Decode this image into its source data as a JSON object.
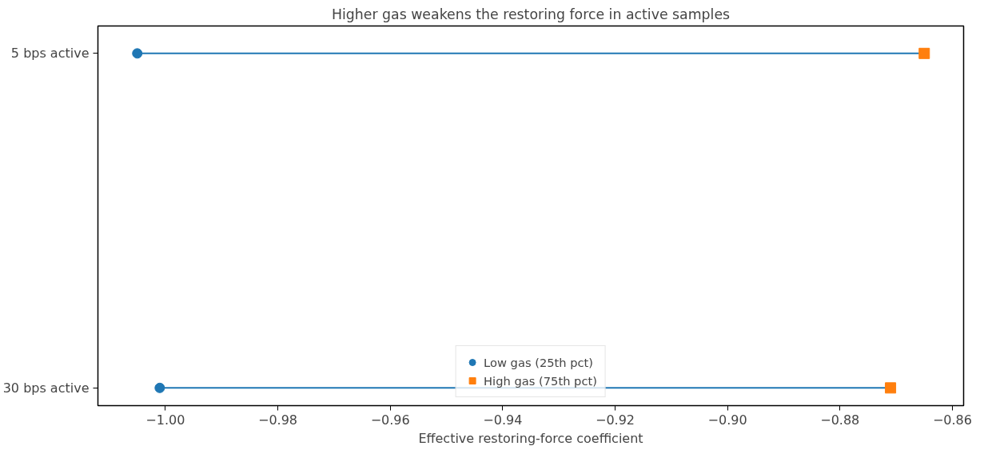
{
  "chart_data": {
    "type": "scatter",
    "title": "Higher gas weakens the restoring force in active samples",
    "xlabel": "Effective restoring-force coefficient",
    "orientation": "horizontal",
    "categories": [
      "5 bps active",
      "30 bps active"
    ],
    "series": [
      {
        "name": "Low gas (25th pct)",
        "color": "#1f77b4",
        "marker": "circle",
        "values": [
          -1.005,
          -1.001
        ]
      },
      {
        "name": "High gas (75th pct)",
        "color": "#ff7f0e",
        "marker": "square",
        "values": [
          -0.865,
          -0.871
        ]
      }
    ],
    "xlim": [
      -1.012,
      -0.858
    ],
    "xticks": [
      {
        "value": -1.0,
        "label": "−1.00"
      },
      {
        "value": -0.98,
        "label": "−0.98"
      },
      {
        "value": -0.96,
        "label": "−0.96"
      },
      {
        "value": -0.94,
        "label": "−0.94"
      },
      {
        "value": -0.92,
        "label": "−0.92"
      },
      {
        "value": -0.9,
        "label": "−0.90"
      },
      {
        "value": -0.88,
        "label": "−0.88"
      },
      {
        "value": -0.86,
        "label": "−0.86"
      }
    ],
    "legend": "bottom",
    "grid": false
  }
}
